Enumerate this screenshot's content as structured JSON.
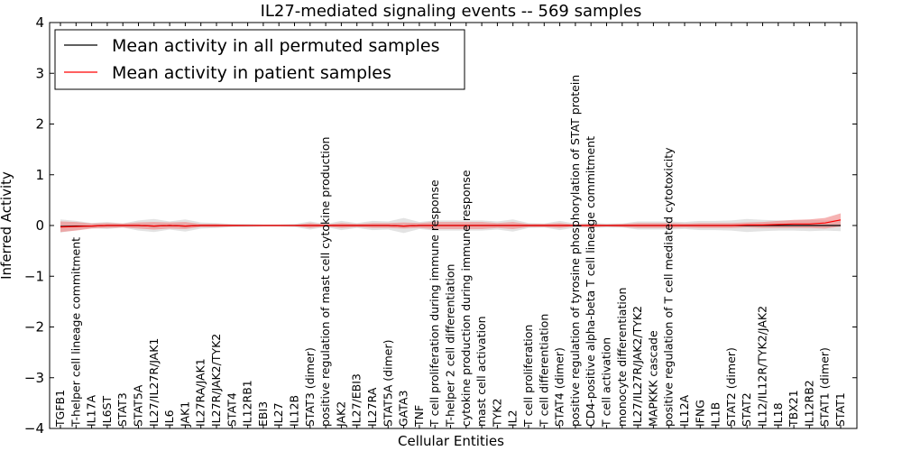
{
  "chart_data": {
    "type": "line",
    "title": "IL27-mediated signaling events -- 569 samples",
    "xlabel": "Cellular Entities",
    "ylabel": "Inferred Activity",
    "ylim": [
      -4,
      4
    ],
    "yticks": [
      -4,
      -3,
      -2,
      -1,
      0,
      1,
      2,
      3,
      4
    ],
    "ytick_labels": [
      "−4",
      "−3",
      "−2",
      "−1",
      "0",
      "1",
      "2",
      "3",
      "4"
    ],
    "legend_position": "top-left",
    "categories": [
      "TGFB1",
      "T-helper cell lineage commitment",
      "IL17A",
      "IL6ST",
      "STAT3",
      "STAT5A",
      "IL27/IL27R/JAK1",
      "IL6",
      "JAK1",
      "IL27RA/JAK1",
      "IL27R/JAK2/TYK2",
      "STAT4",
      "IL12RB1",
      "EBI3",
      "IL27",
      "IL12B",
      "STAT3 (dimer)",
      "positive regulation of mast cell cytokine production",
      "JAK2",
      "IL27/EBI3",
      "IL27RA",
      "STAT5A (dimer)",
      "GATA3",
      "TNF",
      "T cell proliferation during immune response",
      "T-helper 2 cell differentiation",
      "cytokine production during immune response",
      "mast cell activation",
      "TYK2",
      "IL2",
      "T cell proliferation",
      "T cell differentiation",
      "STAT4 (dimer)",
      "positive regulation of tyrosine phosphorylation of STAT protein",
      "CD4-positive alpha-beta T cell lineage commitment",
      "T cell activation",
      "monocyte differentiation",
      "IL27/IL27R/JAK2/TYK2",
      "MAPKKK cascade",
      "positive regulation of T cell mediated cytotoxicity",
      "IL12A",
      "IFNG",
      "IL1B",
      "STAT2 (dimer)",
      "STAT2",
      "IL12/IL12R/TYK2/JAK2",
      "IL18",
      "TBX21",
      "IL12RB2",
      "STAT1 (dimer)",
      "STAT1"
    ],
    "series": [
      {
        "name": "Mean activity in all permuted samples",
        "color": "#000000",
        "band_color": "#cccccc",
        "values": [
          -0.02,
          -0.01,
          -0.01,
          0,
          0,
          0,
          -0.01,
          0,
          -0.01,
          0,
          0,
          0,
          0,
          0,
          0,
          0,
          0,
          0,
          0,
          0,
          0,
          0,
          -0.01,
          0,
          0,
          0,
          0,
          0,
          0,
          0,
          0,
          0,
          0,
          0,
          0,
          0,
          0,
          0,
          0,
          0,
          0,
          0,
          0,
          0,
          0,
          0,
          0,
          0,
          0,
          0,
          0
        ],
        "lower": [
          -0.14,
          -0.09,
          -0.05,
          -0.07,
          -0.04,
          -0.1,
          -0.13,
          -0.08,
          -0.12,
          -0.06,
          -0.05,
          -0.03,
          -0.03,
          -0.02,
          -0.02,
          -0.03,
          -0.08,
          -0.03,
          -0.09,
          -0.05,
          -0.09,
          -0.08,
          -0.15,
          -0.07,
          -0.1,
          -0.1,
          -0.1,
          -0.1,
          -0.08,
          -0.12,
          -0.05,
          -0.04,
          -0.09,
          -0.04,
          -0.05,
          -0.04,
          -0.04,
          -0.08,
          -0.08,
          -0.08,
          -0.07,
          -0.09,
          -0.09,
          -0.1,
          -0.13,
          -0.11,
          -0.1,
          -0.1,
          -0.11,
          -0.1,
          -0.11
        ],
        "upper": [
          0.12,
          0.09,
          0.05,
          0.07,
          0.04,
          0.1,
          0.13,
          0.08,
          0.12,
          0.06,
          0.05,
          0.03,
          0.03,
          0.02,
          0.02,
          0.03,
          0.08,
          0.03,
          0.09,
          0.05,
          0.09,
          0.08,
          0.15,
          0.07,
          0.1,
          0.1,
          0.1,
          0.1,
          0.08,
          0.12,
          0.05,
          0.04,
          0.09,
          0.04,
          0.05,
          0.04,
          0.04,
          0.08,
          0.08,
          0.08,
          0.07,
          0.09,
          0.09,
          0.1,
          0.13,
          0.11,
          0.1,
          0.1,
          0.11,
          0.1,
          0.11
        ]
      },
      {
        "name": "Mean activity in patient samples",
        "color": "#ff0000",
        "band_color": "#f08080",
        "values": [
          -0.03,
          -0.02,
          -0.01,
          0,
          0,
          0,
          -0.01,
          0,
          -0.01,
          0,
          0,
          0,
          0,
          0,
          0,
          0,
          0,
          0,
          0,
          0,
          0,
          0,
          -0.01,
          0,
          0,
          0,
          0,
          0,
          0,
          0,
          0,
          0,
          0,
          0,
          0,
          0,
          0,
          0,
          0,
          0,
          0,
          0,
          0,
          0,
          0.01,
          0.01,
          0.02,
          0.03,
          0.03,
          0.05,
          0.11
        ],
        "lower": [
          -0.13,
          -0.1,
          -0.06,
          -0.05,
          -0.04,
          -0.06,
          -0.08,
          -0.06,
          -0.07,
          -0.03,
          -0.03,
          -0.02,
          -0.01,
          -0.01,
          -0.01,
          -0.01,
          -0.05,
          -0.02,
          -0.05,
          -0.03,
          -0.05,
          -0.05,
          -0.06,
          -0.05,
          -0.07,
          -0.07,
          -0.07,
          -0.07,
          -0.05,
          -0.07,
          -0.03,
          -0.03,
          -0.05,
          -0.02,
          -0.03,
          -0.02,
          -0.03,
          -0.05,
          -0.05,
          -0.05,
          -0.04,
          -0.05,
          -0.05,
          -0.05,
          -0.04,
          -0.05,
          -0.05,
          -0.05,
          -0.05,
          -0.06,
          -0.02
        ],
        "upper": [
          0.08,
          0.07,
          0.04,
          0.05,
          0.04,
          0.06,
          0.07,
          0.06,
          0.07,
          0.03,
          0.03,
          0.02,
          0.01,
          0.01,
          0.01,
          0.01,
          0.05,
          0.02,
          0.05,
          0.03,
          0.05,
          0.05,
          0.06,
          0.05,
          0.07,
          0.07,
          0.07,
          0.07,
          0.05,
          0.07,
          0.03,
          0.03,
          0.05,
          0.02,
          0.03,
          0.02,
          0.03,
          0.05,
          0.05,
          0.05,
          0.04,
          0.05,
          0.05,
          0.05,
          0.06,
          0.07,
          0.09,
          0.11,
          0.12,
          0.15,
          0.24
        ]
      }
    ]
  }
}
